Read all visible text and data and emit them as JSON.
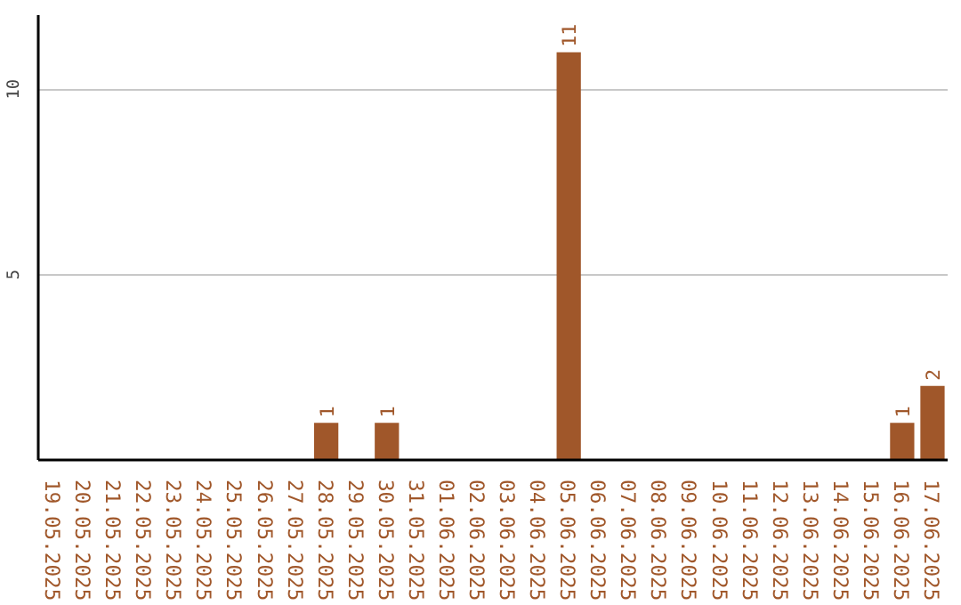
{
  "chart_data": {
    "type": "bar",
    "categories": [
      "19.05.2025",
      "20.05.2025",
      "21.05.2025",
      "22.05.2025",
      "23.05.2025",
      "24.05.2025",
      "25.05.2025",
      "26.05.2025",
      "27.05.2025",
      "28.05.2025",
      "29.05.2025",
      "30.05.2025",
      "31.05.2025",
      "01.06.2025",
      "02.06.2025",
      "03.06.2025",
      "04.06.2025",
      "05.06.2025",
      "06.06.2025",
      "07.06.2025",
      "08.06.2025",
      "09.06.2025",
      "10.06.2025",
      "11.06.2025",
      "12.06.2025",
      "13.06.2025",
      "14.06.2025",
      "15.06.2025",
      "16.06.2025",
      "17.06.2025"
    ],
    "values": [
      0,
      0,
      0,
      0,
      0,
      0,
      0,
      0,
      0,
      1,
      0,
      1,
      0,
      0,
      0,
      0,
      0,
      11,
      0,
      0,
      0,
      0,
      0,
      0,
      0,
      0,
      0,
      0,
      1,
      2
    ],
    "value_labels": [
      null,
      null,
      null,
      null,
      null,
      null,
      null,
      null,
      null,
      "1",
      null,
      "1",
      null,
      null,
      null,
      null,
      null,
      "11",
      null,
      null,
      null,
      null,
      null,
      null,
      null,
      null,
      null,
      null,
      "1",
      "2"
    ],
    "color": "#a0572a",
    "ylim": [
      0,
      12
    ],
    "yticks": [
      5,
      10
    ],
    "grid": "y"
  }
}
